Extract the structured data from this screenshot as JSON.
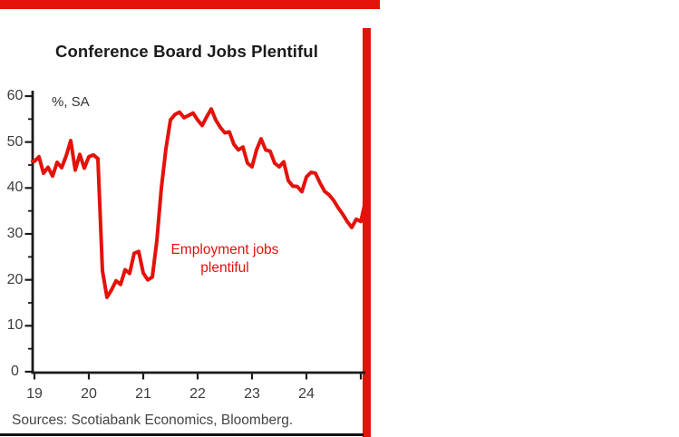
{
  "page": {
    "background": "#ffffff",
    "accent_red": "#e3120b",
    "top_bar_color": "#e3120b",
    "right_strip_color": "#e3120b",
    "bottom_rule_color": "#121212",
    "axis_color": "#1a1a1a",
    "tick_label_color": "#3d3d3d"
  },
  "chart_data": {
    "type": "line",
    "title": "Conference Board Jobs Plentiful",
    "unit_label": "%, SA",
    "xlabel": "",
    "ylabel": "",
    "ylim": [
      0,
      60
    ],
    "xlim_years": [
      2018.95,
      2025.1
    ],
    "y_major_ticks": [
      0,
      10,
      20,
      30,
      40,
      50,
      60
    ],
    "y_minor_ticks": [
      5,
      15,
      25,
      35,
      45,
      55
    ],
    "x_tick_years": [
      2019,
      2020,
      2021,
      2022,
      2023,
      2024,
      2025
    ],
    "x_tick_labels": [
      "19",
      "20",
      "21",
      "22",
      "23",
      "24",
      ""
    ],
    "grid": false,
    "legend_position": "none",
    "annotation": {
      "lines": [
        "Employment jobs",
        "plentiful"
      ],
      "color": "#e3120b"
    },
    "series": [
      {
        "name": "Employment jobs plentiful",
        "color": "#e3120b",
        "start": "2019-01",
        "frequency": "monthly",
        "values": [
          45.8,
          46.8,
          43.2,
          44.5,
          42.6,
          45.6,
          44.4,
          47.0,
          50.3,
          43.9,
          47.3,
          44.3,
          46.8,
          47.2,
          46.4,
          22.0,
          16.2,
          17.8,
          19.8,
          19.0,
          22.2,
          21.4,
          25.8,
          26.2,
          21.5,
          20.0,
          20.6,
          28.5,
          40.0,
          48.5,
          54.8,
          56.0,
          56.5,
          55.3,
          55.8,
          56.3,
          54.8,
          53.6,
          55.5,
          57.2,
          54.8,
          53.2,
          52.0,
          52.2,
          49.5,
          48.3,
          48.9,
          45.4,
          44.6,
          48.3,
          50.7,
          48.3,
          48.0,
          45.4,
          44.6,
          45.7,
          41.6,
          40.4,
          40.3,
          39.2,
          42.4,
          43.4,
          43.2,
          41.1,
          39.3,
          38.5,
          37.3,
          35.7,
          34.3,
          32.7,
          31.4,
          33.2,
          32.7,
          37.0
        ]
      }
    ],
    "source_note": "Sources: Scotiabank Economics, Bloomberg."
  }
}
